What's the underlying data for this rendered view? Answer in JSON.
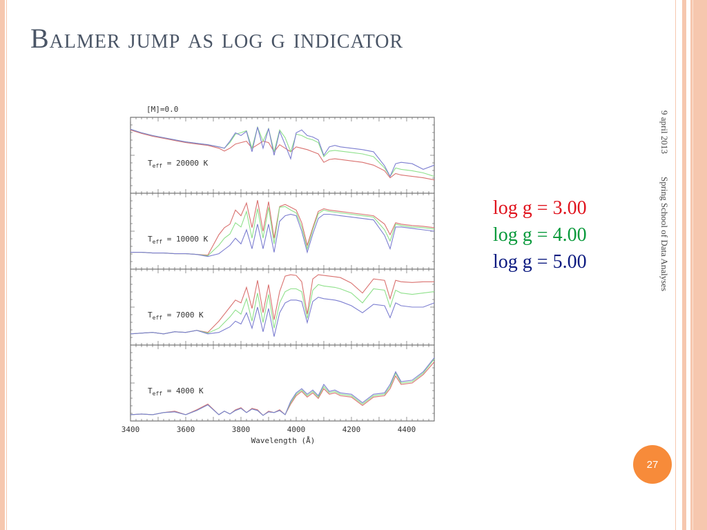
{
  "slide": {
    "title": "Balmer jump as log g indicator",
    "date": "9 april 2013",
    "event": "Spring School of Data Analyses",
    "page_number": "27"
  },
  "chart_data": {
    "type": "line",
    "metallicity_label": "[M]=0.0",
    "xlabel": "Wavelength (Å)",
    "xlim": [
      3400,
      4500
    ],
    "x_ticks": [
      3400,
      3600,
      3800,
      4000,
      4200,
      4400
    ],
    "x_tick_labels": [
      "3400",
      "3600",
      "3800",
      "4000",
      "4200",
      "4400"
    ],
    "series": [
      {
        "name": "log g = 3.00",
        "color": "#e0141e"
      },
      {
        "name": "log g = 4.00",
        "color": "#0a9a3c"
      },
      {
        "name": "log g = 5.00",
        "color": "#0c1a80"
      }
    ],
    "line_colors": [
      "#d9706e",
      "#8ee08a",
      "#7b7dd0"
    ],
    "panels": [
      {
        "teff": "20000",
        "ylim": [
          0,
          1
        ]
      },
      {
        "teff": "10000",
        "ylim": [
          0,
          1
        ]
      },
      {
        "teff": "7000",
        "ylim": [
          0,
          1
        ]
      },
      {
        "teff": "4000",
        "ylim": [
          0,
          1
        ]
      }
    ],
    "x": [
      3400,
      3440,
      3480,
      3520,
      3560,
      3600,
      3640,
      3680,
      3720,
      3740,
      3760,
      3780,
      3800,
      3820,
      3840,
      3860,
      3880,
      3900,
      3920,
      3940,
      3960,
      3980,
      4000,
      4020,
      4040,
      4060,
      4080,
      4100,
      4120,
      4140,
      4160,
      4200,
      4240,
      4280,
      4320,
      4340,
      4360,
      4380,
      4420,
      4460,
      4500
    ],
    "panel_values": [
      [
        [
          0.86,
          0.81,
          0.77,
          0.74,
          0.71,
          0.68,
          0.66,
          0.64,
          0.6,
          0.56,
          0.6,
          0.66,
          0.68,
          0.7,
          0.6,
          0.65,
          0.7,
          0.68,
          0.55,
          0.65,
          0.6,
          0.55,
          0.62,
          0.6,
          0.58,
          0.55,
          0.52,
          0.4,
          0.44,
          0.45,
          0.44,
          0.42,
          0.4,
          0.36,
          0.28,
          0.18,
          0.24,
          0.22,
          0.2,
          0.18,
          0.15
        ],
        [
          0.87,
          0.82,
          0.78,
          0.75,
          0.72,
          0.69,
          0.67,
          0.65,
          0.62,
          0.6,
          0.68,
          0.8,
          0.82,
          0.85,
          0.6,
          0.9,
          0.7,
          0.88,
          0.55,
          0.86,
          0.75,
          0.55,
          0.8,
          0.78,
          0.74,
          0.72,
          0.68,
          0.48,
          0.56,
          0.57,
          0.56,
          0.54,
          0.52,
          0.48,
          0.32,
          0.2,
          0.32,
          0.3,
          0.28,
          0.25,
          0.2
        ],
        [
          0.87,
          0.82,
          0.78,
          0.75,
          0.72,
          0.69,
          0.67,
          0.65,
          0.62,
          0.6,
          0.7,
          0.82,
          0.78,
          0.84,
          0.55,
          0.9,
          0.6,
          0.88,
          0.5,
          0.84,
          0.65,
          0.45,
          0.82,
          0.86,
          0.78,
          0.76,
          0.72,
          0.5,
          0.62,
          0.64,
          0.62,
          0.6,
          0.58,
          0.55,
          0.35,
          0.2,
          0.38,
          0.4,
          0.38,
          0.3,
          0.36
        ]
      ],
      [
        [
          0.2,
          0.2,
          0.19,
          0.19,
          0.18,
          0.18,
          0.17,
          0.16,
          0.45,
          0.55,
          0.6,
          0.8,
          0.72,
          0.9,
          0.55,
          0.94,
          0.5,
          0.92,
          0.4,
          0.85,
          0.88,
          0.84,
          0.8,
          0.62,
          0.3,
          0.55,
          0.78,
          0.82,
          0.8,
          0.79,
          0.78,
          0.76,
          0.74,
          0.72,
          0.6,
          0.45,
          0.62,
          0.6,
          0.58,
          0.57,
          0.55
        ],
        [
          0.2,
          0.2,
          0.19,
          0.19,
          0.18,
          0.18,
          0.17,
          0.15,
          0.3,
          0.4,
          0.46,
          0.62,
          0.56,
          0.78,
          0.4,
          0.82,
          0.4,
          0.84,
          0.32,
          0.84,
          0.85,
          0.8,
          0.76,
          0.56,
          0.25,
          0.52,
          0.75,
          0.8,
          0.78,
          0.77,
          0.76,
          0.74,
          0.72,
          0.7,
          0.52,
          0.36,
          0.6,
          0.58,
          0.56,
          0.55,
          0.53
        ],
        [
          0.2,
          0.2,
          0.19,
          0.19,
          0.18,
          0.18,
          0.17,
          0.14,
          0.18,
          0.24,
          0.3,
          0.4,
          0.32,
          0.52,
          0.25,
          0.6,
          0.25,
          0.6,
          0.2,
          0.64,
          0.72,
          0.74,
          0.72,
          0.5,
          0.2,
          0.46,
          0.68,
          0.74,
          0.74,
          0.73,
          0.72,
          0.7,
          0.68,
          0.66,
          0.44,
          0.25,
          0.56,
          0.56,
          0.54,
          0.52,
          0.5
        ]
      ],
      [
        [
          0.12,
          0.13,
          0.14,
          0.12,
          0.15,
          0.14,
          0.17,
          0.14,
          0.3,
          0.4,
          0.5,
          0.6,
          0.56,
          0.78,
          0.48,
          0.88,
          0.42,
          0.82,
          0.32,
          0.72,
          0.94,
          0.96,
          0.95,
          0.86,
          0.4,
          0.9,
          0.96,
          0.95,
          0.94,
          0.93,
          0.92,
          0.84,
          0.7,
          0.9,
          0.88,
          0.62,
          0.88,
          0.86,
          0.85,
          0.86,
          0.86
        ],
        [
          0.12,
          0.13,
          0.14,
          0.12,
          0.15,
          0.14,
          0.17,
          0.13,
          0.2,
          0.28,
          0.36,
          0.46,
          0.4,
          0.62,
          0.3,
          0.7,
          0.28,
          0.68,
          0.2,
          0.56,
          0.72,
          0.76,
          0.76,
          0.72,
          0.34,
          0.74,
          0.82,
          0.8,
          0.79,
          0.78,
          0.76,
          0.7,
          0.56,
          0.76,
          0.74,
          0.5,
          0.74,
          0.7,
          0.68,
          0.7,
          0.72
        ],
        [
          0.12,
          0.13,
          0.14,
          0.12,
          0.15,
          0.14,
          0.17,
          0.12,
          0.14,
          0.18,
          0.22,
          0.3,
          0.26,
          0.42,
          0.2,
          0.5,
          0.15,
          0.48,
          0.08,
          0.42,
          0.56,
          0.6,
          0.6,
          0.58,
          0.28,
          0.58,
          0.64,
          0.62,
          0.61,
          0.6,
          0.58,
          0.52,
          0.42,
          0.54,
          0.52,
          0.35,
          0.56,
          0.52,
          0.5,
          0.5,
          0.56
        ]
      ],
      [
        [
          0.05,
          0.06,
          0.05,
          0.08,
          0.1,
          0.05,
          0.12,
          0.2,
          0.05,
          0.1,
          0.06,
          0.12,
          0.15,
          0.08,
          0.14,
          0.12,
          0.04,
          0.1,
          0.08,
          0.12,
          0.05,
          0.2,
          0.32,
          0.38,
          0.3,
          0.36,
          0.28,
          0.42,
          0.34,
          0.36,
          0.32,
          0.3,
          0.18,
          0.3,
          0.32,
          0.42,
          0.6,
          0.48,
          0.5,
          0.62,
          0.8
        ],
        [
          0.05,
          0.06,
          0.05,
          0.08,
          0.09,
          0.05,
          0.11,
          0.19,
          0.05,
          0.1,
          0.06,
          0.11,
          0.14,
          0.08,
          0.13,
          0.11,
          0.04,
          0.09,
          0.08,
          0.11,
          0.05,
          0.22,
          0.34,
          0.4,
          0.32,
          0.38,
          0.3,
          0.45,
          0.36,
          0.38,
          0.34,
          0.32,
          0.2,
          0.32,
          0.34,
          0.45,
          0.64,
          0.5,
          0.52,
          0.64,
          0.84
        ],
        [
          0.05,
          0.06,
          0.05,
          0.08,
          0.09,
          0.05,
          0.11,
          0.19,
          0.05,
          0.1,
          0.06,
          0.11,
          0.14,
          0.08,
          0.13,
          0.11,
          0.04,
          0.09,
          0.08,
          0.11,
          0.05,
          0.24,
          0.36,
          0.42,
          0.34,
          0.4,
          0.32,
          0.48,
          0.38,
          0.4,
          0.36,
          0.34,
          0.22,
          0.34,
          0.36,
          0.48,
          0.66,
          0.52,
          0.54,
          0.66,
          0.86
        ]
      ]
    ]
  }
}
